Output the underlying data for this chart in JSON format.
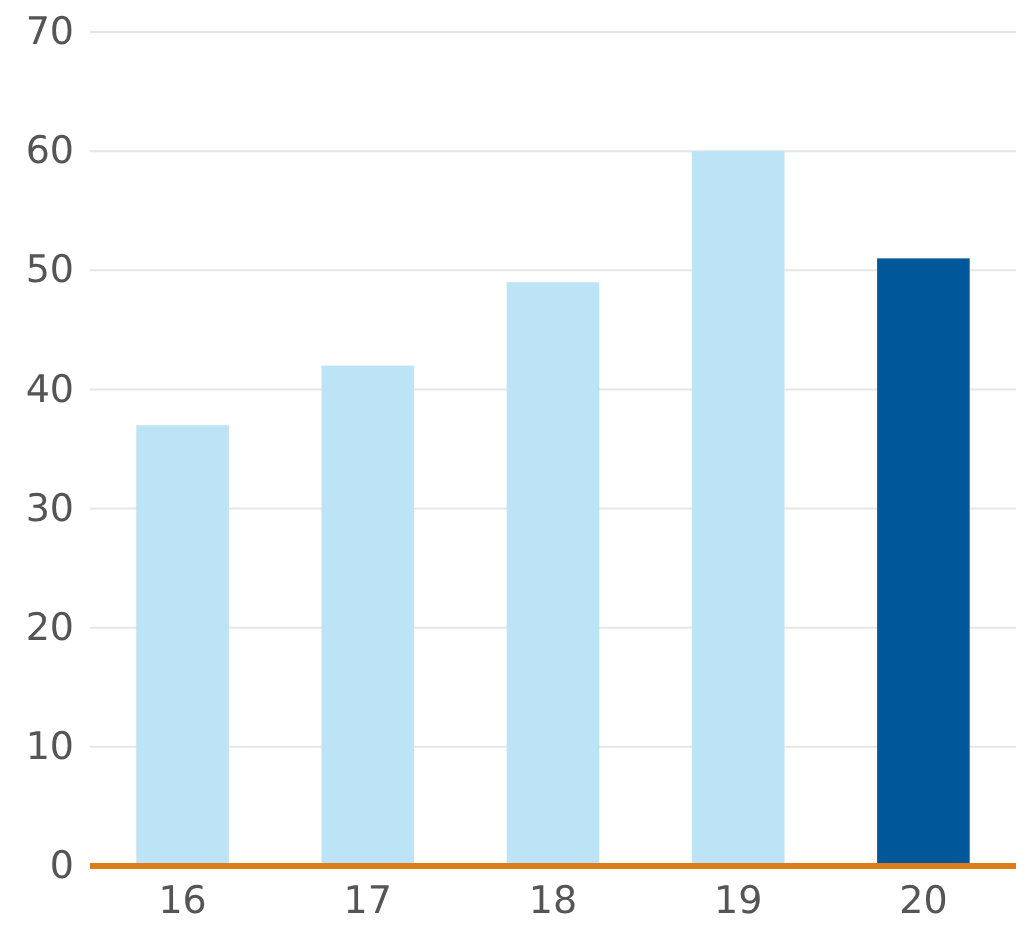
{
  "chart_data": {
    "type": "bar",
    "categories": [
      "16",
      "17",
      "18",
      "19",
      "20"
    ],
    "values": [
      37,
      42,
      49,
      60,
      51
    ],
    "colors": [
      "#bde3f6",
      "#bde3f6",
      "#bde3f6",
      "#bde3f6",
      "#00579a"
    ],
    "ylim": [
      0,
      70
    ],
    "yticks": [
      0,
      10,
      20,
      30,
      40,
      50,
      60,
      70
    ],
    "grid": "y"
  }
}
